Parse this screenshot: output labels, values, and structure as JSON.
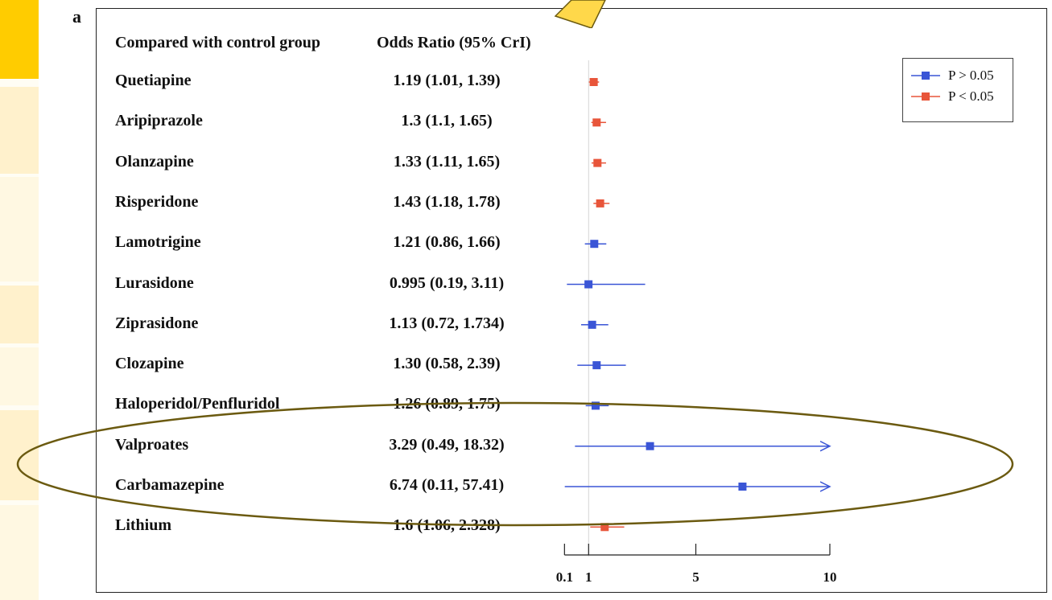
{
  "panel_label": "a",
  "colors": {
    "nonsig": "#3a55d6",
    "sig": "#e8553a",
    "ellipse": "#6b5a10",
    "callout_fill": "#ffd84a",
    "side_strip": "#fff1cc",
    "side_accent": "#ffcc00"
  },
  "chart_data": {
    "type": "forest",
    "headers": {
      "group": "Compared with control group",
      "estimate": "Odds Ratio (95% CrI)"
    },
    "reference_line": 1,
    "xlim": [
      0,
      10
    ],
    "x_ticks": [
      "0.1",
      "1",
      "5",
      "10"
    ],
    "x_tick_values": [
      0.1,
      1,
      5,
      10
    ],
    "legend": {
      "position": "top-right",
      "entries": [
        {
          "label": "P > 0.05",
          "group": "nonsig"
        },
        {
          "label": "P < 0.05",
          "group": "sig"
        }
      ]
    },
    "rows": [
      {
        "name": "Quetiapine",
        "text": "1.19 (1.01, 1.39)",
        "or": 1.19,
        "low": 1.01,
        "high": 1.39,
        "group": "sig"
      },
      {
        "name": "Aripiprazole",
        "text": "1.3 (1.1, 1.65)",
        "or": 1.3,
        "low": 1.1,
        "high": 1.65,
        "group": "sig"
      },
      {
        "name": "Olanzapine",
        "text": "1.33 (1.11, 1.65)",
        "or": 1.33,
        "low": 1.11,
        "high": 1.65,
        "group": "sig"
      },
      {
        "name": "Risperidone",
        "text": "1.43 (1.18, 1.78)",
        "or": 1.43,
        "low": 1.18,
        "high": 1.78,
        "group": "sig"
      },
      {
        "name": "Lamotrigine",
        "text": "1.21 (0.86, 1.66)",
        "or": 1.21,
        "low": 0.86,
        "high": 1.66,
        "group": "nonsig"
      },
      {
        "name": "Lurasidone",
        "text": "0.995 (0.19, 3.11)",
        "or": 0.995,
        "low": 0.19,
        "high": 3.11,
        "group": "nonsig"
      },
      {
        "name": "Ziprasidone",
        "text": "1.13 (0.72, 1.734)",
        "or": 1.13,
        "low": 0.72,
        "high": 1.734,
        "group": "nonsig"
      },
      {
        "name": "Clozapine",
        "text": "1.30 (0.58, 2.39)",
        "or": 1.3,
        "low": 0.58,
        "high": 2.39,
        "group": "nonsig"
      },
      {
        "name": "Haloperidol/Penfluridol",
        "text": "1.26 (0.89, 1.75)",
        "or": 1.26,
        "low": 0.89,
        "high": 1.75,
        "group": "nonsig"
      },
      {
        "name": "Valproates",
        "text": "3.29 (0.49, 18.32)",
        "or": 3.29,
        "low": 0.49,
        "high": 18.32,
        "group": "nonsig",
        "arrow": true
      },
      {
        "name": "Carbamazepine",
        "text": "6.74 (0.11, 57.41)",
        "or": 6.74,
        "low": 0.11,
        "high": 57.41,
        "group": "nonsig",
        "arrow": true
      },
      {
        "name": "Lithium",
        "text": "1.6 (1.06, 2.328)",
        "or": 1.6,
        "low": 1.06,
        "high": 2.328,
        "group": "sig"
      }
    ]
  }
}
